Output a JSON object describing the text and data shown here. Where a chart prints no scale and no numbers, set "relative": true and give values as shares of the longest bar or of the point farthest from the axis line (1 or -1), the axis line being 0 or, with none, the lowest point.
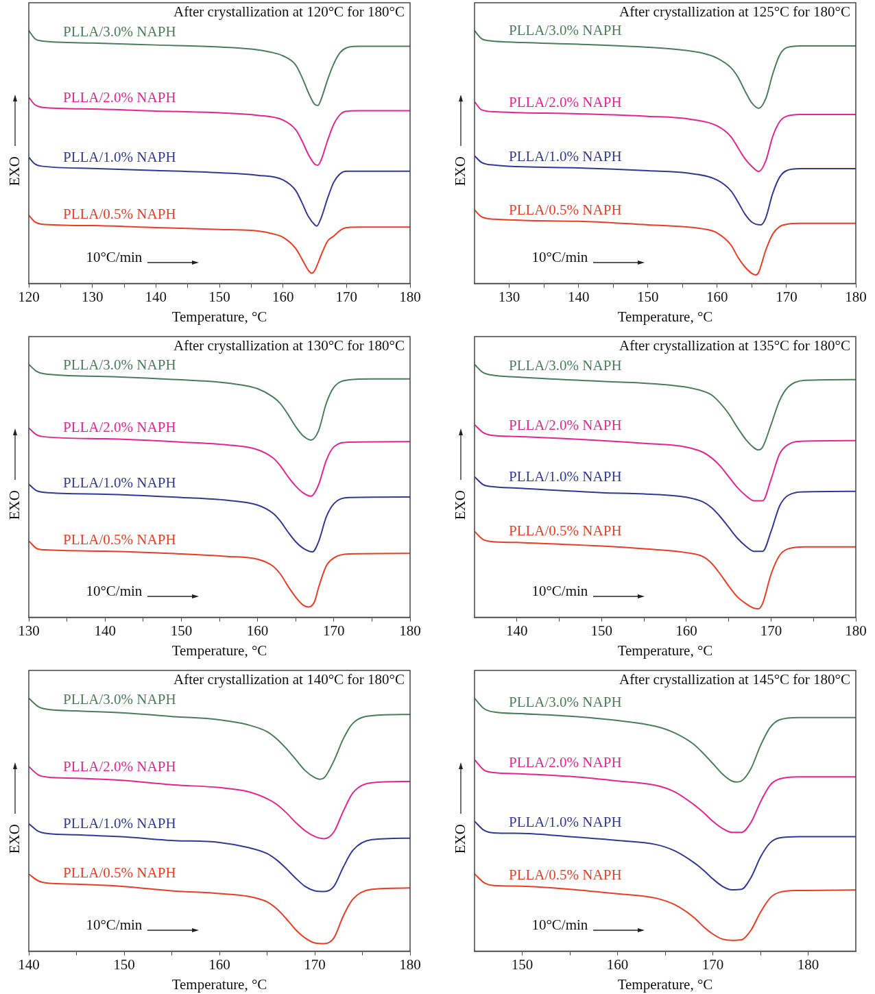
{
  "chart_data": [
    {
      "type": "line",
      "relative": true,
      "title": "After crystallization at 120°C for 180°C",
      "xlabel": "Temperature, °C",
      "ylabel": "EXO",
      "annotations": [
        "10°C/min"
      ],
      "xlim": [
        120,
        180
      ],
      "xticks": [
        120,
        {
          "value": 125,
          "label": null
        },
        130,
        {
          "value": 135,
          "label": null
        },
        140,
        {
          "value": 145,
          "label": null
        },
        150,
        {
          "value": 155,
          "label": null
        },
        160,
        {
          "value": 165,
          "label": null
        },
        170,
        {
          "value": 175,
          "label": null
        },
        180
      ],
      "series": [
        {
          "name": "PLLA/3.0% NAPH",
          "color": "#4a7d5e",
          "x": [
            120,
            121,
            122,
            130,
            140,
            150,
            155,
            158,
            160,
            162,
            163,
            164,
            165,
            165.5,
            166,
            167,
            168,
            169,
            170,
            172,
            180
          ],
          "values": [
            1.0,
            0.967,
            0.959,
            0.951,
            0.943,
            0.935,
            0.927,
            0.915,
            0.9,
            0.864,
            0.815,
            0.755,
            0.708,
            0.704,
            0.728,
            0.804,
            0.869,
            0.913,
            0.932,
            0.938,
            0.938
          ]
        },
        {
          "name": "PLLA/2.0% NAPH",
          "color": "#e8238f",
          "x": [
            120,
            121,
            122,
            130,
            140,
            150,
            156,
            160,
            162,
            163,
            164,
            165,
            165.5,
            166,
            167,
            168,
            169,
            170,
            172,
            180
          ],
          "values": [
            0.736,
            0.706,
            0.697,
            0.69,
            0.682,
            0.675,
            0.665,
            0.646,
            0.608,
            0.564,
            0.51,
            0.472,
            0.468,
            0.488,
            0.564,
            0.63,
            0.668,
            0.681,
            0.683,
            0.683
          ]
        },
        {
          "name": "PLLA/1.0% NAPH",
          "color": "#303a96",
          "x": [
            120,
            121,
            122,
            130,
            140,
            150,
            156,
            160,
            162,
            163,
            164,
            165,
            165.3,
            166,
            167,
            168,
            169,
            170,
            172,
            180
          ],
          "values": [
            0.499,
            0.472,
            0.464,
            0.455,
            0.447,
            0.438,
            0.428,
            0.41,
            0.368,
            0.319,
            0.265,
            0.232,
            0.227,
            0.259,
            0.336,
            0.401,
            0.434,
            0.444,
            0.444,
            0.444
          ]
        },
        {
          "name": "PLLA/0.5% NAPH",
          "color": "#ee3b22",
          "x": [
            120,
            121,
            122,
            130,
            140,
            150,
            155,
            158,
            160,
            162,
            163,
            164,
            164.5,
            165,
            166,
            167,
            168,
            169,
            170,
            172,
            180
          ],
          "values": [
            0.27,
            0.243,
            0.235,
            0.229,
            0.221,
            0.214,
            0.21,
            0.199,
            0.183,
            0.139,
            0.096,
            0.052,
            0.041,
            0.052,
            0.112,
            0.167,
            0.188,
            0.21,
            0.221,
            0.223,
            0.223
          ]
        }
      ]
    },
    {
      "type": "line",
      "relative": true,
      "title": "After crystallization at 125°C for 180°C",
      "xlabel": "Temperature, °C",
      "ylabel": "EXO",
      "annotations": [
        "10°C/min"
      ],
      "xlim": [
        125,
        180
      ],
      "xticks": [
        130,
        {
          "value": 135,
          "label": null
        },
        140,
        {
          "value": 145,
          "label": null
        },
        150,
        {
          "value": 155,
          "label": null
        },
        160,
        {
          "value": 165,
          "label": null
        },
        170,
        {
          "value": 175,
          "label": null
        },
        180
      ],
      "series": [
        {
          "name": "PLLA/3.0% NAPH",
          "color": "#4a7d5e",
          "x": [
            125,
            126,
            127,
            130,
            140,
            150,
            155,
            158,
            160,
            162,
            163,
            164,
            165,
            166,
            167,
            168,
            169,
            170,
            172,
            180
          ],
          "values": [
            1.0,
            0.968,
            0.96,
            0.955,
            0.946,
            0.934,
            0.923,
            0.91,
            0.891,
            0.853,
            0.816,
            0.762,
            0.714,
            0.693,
            0.73,
            0.827,
            0.902,
            0.932,
            0.939,
            0.939
          ]
        },
        {
          "name": "PLLA/2.0% NAPH",
          "color": "#e8238f",
          "x": [
            125,
            126,
            128,
            140,
            150,
            156,
            160,
            162,
            163,
            164,
            165,
            166,
            167,
            168,
            169,
            170,
            172,
            180
          ],
          "values": [
            0.719,
            0.687,
            0.679,
            0.671,
            0.661,
            0.65,
            0.623,
            0.58,
            0.537,
            0.494,
            0.463,
            0.443,
            0.484,
            0.58,
            0.639,
            0.661,
            0.668,
            0.668
          ]
        },
        {
          "name": "PLLA/1.0% NAPH",
          "color": "#303a96",
          "x": [
            125,
            126,
            128,
            140,
            150,
            156,
            160,
            162,
            163,
            164,
            165,
            166.3,
            167,
            168,
            169,
            170,
            172,
            180
          ],
          "values": [
            0.505,
            0.479,
            0.468,
            0.457,
            0.446,
            0.436,
            0.409,
            0.366,
            0.323,
            0.275,
            0.243,
            0.232,
            0.259,
            0.355,
            0.42,
            0.446,
            0.454,
            0.454
          ]
        },
        {
          "name": "PLLA/0.5% NAPH",
          "color": "#ee3b22",
          "x": [
            125,
            126,
            128,
            140,
            150,
            155,
            158,
            160,
            162,
            163,
            164,
            165,
            165.6,
            166,
            167,
            168,
            169,
            170,
            172,
            180
          ],
          "values": [
            0.291,
            0.264,
            0.254,
            0.246,
            0.232,
            0.225,
            0.216,
            0.2,
            0.152,
            0.104,
            0.066,
            0.04,
            0.034,
            0.045,
            0.131,
            0.195,
            0.225,
            0.234,
            0.238,
            0.238
          ]
        }
      ]
    },
    {
      "type": "line",
      "relative": true,
      "title": "After crystallization at 130°C for 180°C",
      "xlabel": "Temperature, °C",
      "ylabel": "EXO",
      "annotations": [
        "10°C/min"
      ],
      "xlim": [
        130,
        180
      ],
      "xticks": [
        130,
        {
          "value": 135,
          "label": null
        },
        140,
        {
          "value": 145,
          "label": null
        },
        150,
        {
          "value": 155,
          "label": null
        },
        160,
        {
          "value": 165,
          "label": null
        },
        170,
        {
          "value": 175,
          "label": null
        },
        180
      ],
      "series": [
        {
          "name": "PLLA/3.0% NAPH",
          "color": "#4a7d5e",
          "x": [
            130,
            131,
            132,
            140,
            150,
            155,
            158,
            160,
            162,
            163,
            164,
            165,
            166,
            167,
            168,
            169,
            170,
            172,
            175,
            180
          ],
          "values": [
            1.0,
            0.973,
            0.963,
            0.952,
            0.939,
            0.93,
            0.918,
            0.904,
            0.872,
            0.845,
            0.802,
            0.754,
            0.717,
            0.701,
            0.738,
            0.845,
            0.909,
            0.939,
            0.943,
            0.943
          ]
        },
        {
          "name": "PLLA/2.0% NAPH",
          "color": "#e8238f",
          "x": [
            130,
            131,
            132,
            140,
            150,
            156,
            160,
            162,
            163,
            164,
            165,
            166,
            167,
            168,
            169,
            170,
            172,
            180
          ],
          "values": [
            0.749,
            0.722,
            0.714,
            0.706,
            0.693,
            0.682,
            0.663,
            0.631,
            0.599,
            0.556,
            0.519,
            0.492,
            0.479,
            0.524,
            0.62,
            0.674,
            0.693,
            0.695
          ]
        },
        {
          "name": "PLLA/1.0% NAPH",
          "color": "#303a96",
          "x": [
            130,
            131,
            132,
            140,
            150,
            156,
            160,
            162,
            163,
            164,
            165,
            166,
            167.2,
            168,
            169,
            170,
            172,
            180
          ],
          "values": [
            0.526,
            0.501,
            0.494,
            0.487,
            0.474,
            0.463,
            0.444,
            0.412,
            0.38,
            0.337,
            0.299,
            0.273,
            0.259,
            0.299,
            0.396,
            0.449,
            0.474,
            0.476
          ]
        },
        {
          "name": "PLLA/0.5% NAPH",
          "color": "#ee3b22",
          "x": [
            130,
            131,
            132,
            140,
            150,
            156,
            160,
            162,
            163,
            164,
            165,
            166,
            166.7,
            167.5,
            168,
            169,
            170,
            172,
            180
          ],
          "values": [
            0.302,
            0.273,
            0.267,
            0.262,
            0.251,
            0.241,
            0.23,
            0.203,
            0.171,
            0.123,
            0.08,
            0.048,
            0.041,
            0.064,
            0.118,
            0.203,
            0.235,
            0.251,
            0.253
          ]
        }
      ]
    },
    {
      "type": "line",
      "relative": true,
      "title": "After crystallization at 135°C for 180°C",
      "xlabel": "Temperature, °C",
      "ylabel": "EXO",
      "annotations": [
        "10°C/min"
      ],
      "xlim": [
        135,
        180
      ],
      "xticks": [
        140,
        {
          "value": 145,
          "label": null
        },
        150,
        {
          "value": 155,
          "label": null
        },
        160,
        {
          "value": 165,
          "label": null
        },
        170,
        {
          "value": 175,
          "label": null
        },
        180
      ],
      "series": [
        {
          "name": "PLLA/3.0% NAPH",
          "color": "#4a7d5e",
          "x": [
            135,
            136,
            137,
            140,
            150,
            155,
            160,
            162,
            163,
            164,
            165,
            166,
            167,
            168,
            168.5,
            169,
            170,
            171,
            172,
            174,
            180
          ],
          "values": [
            1.0,
            0.968,
            0.958,
            0.95,
            0.933,
            0.926,
            0.91,
            0.894,
            0.879,
            0.847,
            0.805,
            0.752,
            0.704,
            0.67,
            0.662,
            0.673,
            0.762,
            0.857,
            0.91,
            0.937,
            0.94
          ]
        },
        {
          "name": "PLLA/2.0% NAPH",
          "color": "#e8238f",
          "x": [
            135,
            136,
            137,
            140,
            150,
            155,
            160,
            162,
            163,
            164,
            165,
            166,
            167,
            168,
            169,
            170,
            171,
            172,
            174,
            180
          ],
          "values": [
            0.762,
            0.731,
            0.72,
            0.715,
            0.699,
            0.688,
            0.673,
            0.652,
            0.63,
            0.598,
            0.556,
            0.514,
            0.482,
            0.461,
            0.461,
            0.546,
            0.646,
            0.683,
            0.697,
            0.699
          ]
        },
        {
          "name": "PLLA/1.0% NAPH",
          "color": "#303a96",
          "x": [
            135,
            136,
            137,
            140,
            150,
            155,
            160,
            162,
            163,
            164,
            165,
            166,
            167,
            168,
            169,
            170,
            171,
            172,
            174,
            180
          ],
          "values": [
            0.556,
            0.525,
            0.517,
            0.511,
            0.493,
            0.488,
            0.475,
            0.456,
            0.433,
            0.398,
            0.356,
            0.314,
            0.282,
            0.261,
            0.261,
            0.34,
            0.44,
            0.482,
            0.496,
            0.498
          ]
        },
        {
          "name": "PLLA/0.5% NAPH",
          "color": "#ee3b22",
          "x": [
            135,
            136,
            137,
            140,
            150,
            155,
            160,
            162,
            163,
            164,
            165,
            166,
            167,
            168,
            168.5,
            169,
            170,
            171,
            172,
            174,
            180
          ],
          "values": [
            0.34,
            0.308,
            0.3,
            0.296,
            0.282,
            0.271,
            0.256,
            0.24,
            0.213,
            0.171,
            0.124,
            0.082,
            0.055,
            0.036,
            0.034,
            0.055,
            0.171,
            0.245,
            0.271,
            0.279,
            0.279
          ]
        }
      ]
    },
    {
      "type": "line",
      "relative": true,
      "title": "After crystallization at 140°C for 180°C",
      "xlabel": "Temperature, °C",
      "ylabel": "EXO",
      "annotations": [
        "10°C/min"
      ],
      "xlim": [
        140,
        180
      ],
      "xticks": [
        140,
        {
          "value": 145,
          "label": null
        },
        150,
        {
          "value": 155,
          "label": null
        },
        160,
        {
          "value": 165,
          "label": null
        },
        170,
        {
          "value": 175,
          "label": null
        },
        180
      ],
      "series": [
        {
          "name": "PLLA/3.0% NAPH",
          "color": "#4a7d5e",
          "x": [
            140,
            141,
            142,
            145,
            150,
            155,
            160,
            163,
            165,
            166,
            167,
            168,
            169,
            170,
            170.5,
            171,
            172,
            173,
            174,
            176,
            180
          ],
          "values": [
            1.0,
            0.967,
            0.956,
            0.95,
            0.942,
            0.928,
            0.915,
            0.895,
            0.868,
            0.84,
            0.802,
            0.758,
            0.714,
            0.686,
            0.68,
            0.686,
            0.752,
            0.84,
            0.901,
            0.931,
            0.936
          ]
        },
        {
          "name": "PLLA/2.0% NAPH",
          "color": "#e8238f",
          "x": [
            140,
            141,
            142,
            145,
            150,
            155,
            160,
            163,
            165,
            166,
            167,
            168,
            169,
            170,
            171,
            172,
            173,
            174,
            176,
            180
          ],
          "values": [
            0.73,
            0.697,
            0.688,
            0.684,
            0.675,
            0.658,
            0.647,
            0.631,
            0.603,
            0.581,
            0.548,
            0.509,
            0.476,
            0.454,
            0.445,
            0.471,
            0.554,
            0.626,
            0.666,
            0.671
          ]
        },
        {
          "name": "PLLA/1.0% NAPH",
          "color": "#303a96",
          "x": [
            140,
            141,
            142,
            145,
            150,
            155,
            160,
            163,
            165,
            166,
            167,
            168,
            169,
            170,
            171,
            172,
            173,
            174,
            176,
            180
          ],
          "values": [
            0.504,
            0.474,
            0.465,
            0.46,
            0.452,
            0.438,
            0.43,
            0.41,
            0.386,
            0.361,
            0.327,
            0.289,
            0.256,
            0.239,
            0.236,
            0.256,
            0.333,
            0.399,
            0.441,
            0.447
          ]
        },
        {
          "name": "PLLA/0.5% NAPH",
          "color": "#ee3b22",
          "x": [
            140,
            141,
            142,
            145,
            150,
            155,
            160,
            163,
            165,
            166,
            167,
            168,
            169,
            170,
            171,
            172,
            173,
            174,
            176,
            180
          ],
          "values": [
            0.305,
            0.278,
            0.269,
            0.265,
            0.256,
            0.239,
            0.228,
            0.217,
            0.195,
            0.168,
            0.129,
            0.085,
            0.052,
            0.033,
            0.03,
            0.052,
            0.14,
            0.206,
            0.245,
            0.25
          ]
        }
      ]
    },
    {
      "type": "line",
      "relative": true,
      "title": "After crystallization at 145°C for 180°C",
      "xlabel": "Temperature, °C",
      "ylabel": "EXO",
      "annotations": [
        "10°C/min"
      ],
      "xlim": [
        145,
        185
      ],
      "xticks": [
        150,
        {
          "value": 155,
          "label": null
        },
        160,
        {
          "value": 165,
          "label": null
        },
        170,
        {
          "value": 175,
          "label": null
        },
        180
      ],
      "series": [
        {
          "name": "PLLA/3.0% NAPH",
          "color": "#4a7d5e",
          "x": [
            145,
            146,
            147,
            150,
            155,
            160,
            164,
            166,
            168,
            169,
            170,
            171,
            172,
            172.5,
            173,
            174,
            175,
            176,
            177,
            179,
            185
          ],
          "values": [
            1.0,
            0.959,
            0.946,
            0.939,
            0.929,
            0.912,
            0.889,
            0.863,
            0.818,
            0.782,
            0.742,
            0.701,
            0.673,
            0.669,
            0.673,
            0.722,
            0.813,
            0.884,
            0.915,
            0.924,
            0.924
          ]
        },
        {
          "name": "PLLA/2.0% NAPH",
          "color": "#e8238f",
          "x": [
            145,
            146,
            147,
            150,
            155,
            160,
            164,
            166,
            168,
            169,
            170,
            171,
            172,
            173,
            174,
            175,
            176,
            177,
            179,
            185
          ],
          "values": [
            0.757,
            0.716,
            0.706,
            0.701,
            0.691,
            0.673,
            0.656,
            0.63,
            0.58,
            0.549,
            0.514,
            0.486,
            0.47,
            0.47,
            0.509,
            0.59,
            0.656,
            0.681,
            0.689,
            0.689
          ]
        },
        {
          "name": "PLLA/1.0% NAPH",
          "color": "#303a96",
          "x": [
            145,
            146,
            147,
            150,
            155,
            160,
            164,
            166,
            168,
            169,
            170,
            171,
            172,
            173,
            174,
            175,
            176,
            177,
            179,
            185
          ],
          "values": [
            0.514,
            0.478,
            0.468,
            0.466,
            0.453,
            0.438,
            0.422,
            0.397,
            0.351,
            0.321,
            0.286,
            0.257,
            0.243,
            0.245,
            0.291,
            0.372,
            0.428,
            0.448,
            0.453,
            0.453
          ]
        },
        {
          "name": "PLLA/0.5% NAPH",
          "color": "#ee3b22",
          "x": [
            145,
            146,
            147,
            150,
            155,
            160,
            164,
            166,
            168,
            169,
            170,
            171,
            172,
            173,
            174,
            175,
            176,
            177,
            179,
            185
          ],
          "values": [
            0.306,
            0.271,
            0.26,
            0.257,
            0.245,
            0.227,
            0.21,
            0.184,
            0.134,
            0.098,
            0.068,
            0.048,
            0.043,
            0.045,
            0.083,
            0.154,
            0.21,
            0.233,
            0.24,
            0.242
          ]
        }
      ]
    }
  ]
}
